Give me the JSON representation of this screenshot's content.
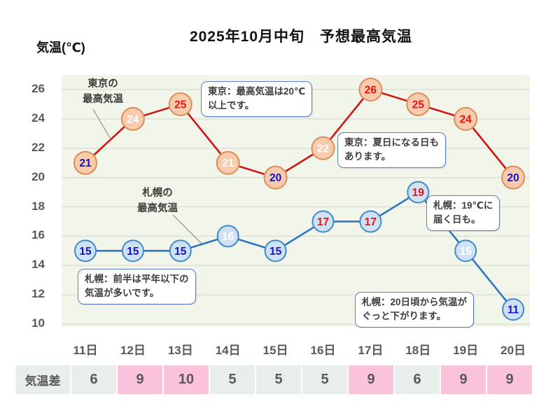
{
  "title": "2025年10月中旬　予想最高気温",
  "y_axis_title": "気温(℃)",
  "chart_data": {
    "type": "line",
    "categories": [
      "11日",
      "12日",
      "13日",
      "14日",
      "15日",
      "16日",
      "17日",
      "18日",
      "19日",
      "20日"
    ],
    "ylim": [
      10,
      26
    ],
    "y_ticks": [
      26,
      24,
      22,
      20,
      18,
      16,
      14,
      12,
      10
    ],
    "grid": true,
    "legend_position": "inline-labels",
    "series": [
      {
        "name": "東京の最高気温",
        "values": [
          21,
          24,
          25,
          21,
          20,
          22,
          26,
          25,
          24,
          20
        ],
        "line_color": "#cf1616",
        "marker_fill": "#f8cbad",
        "marker_stroke": "#dd8d58",
        "value_label_colors": [
          "#1414cc",
          "#ffffff",
          "#e8120e",
          "#ffffff",
          "#1414cc",
          "#ffffff",
          "#e8120e",
          "#e8120e",
          "#e8120e",
          "#1414cc"
        ]
      },
      {
        "name": "札幌の最高気温",
        "values": [
          15,
          15,
          15,
          16,
          15,
          17,
          17,
          19,
          15,
          11
        ],
        "line_color": "#2e77c0",
        "marker_fill": "#cfe2f5",
        "marker_stroke": "#4189cc",
        "value_label_colors": [
          "#1414cc",
          "#1414cc",
          "#1414cc",
          "#ffffff",
          "#1414cc",
          "#e8120e",
          "#e8120e",
          "#e8120e",
          "#ffffff",
          "#1414cc"
        ]
      }
    ]
  },
  "series_labels": {
    "tokyo": "東京の\n最高気温",
    "sapporo": "札幌の\n最高気温"
  },
  "annotations": [
    {
      "id": "tokyo-note-1",
      "text": "東京：最高気温は20℃\n以上です。"
    },
    {
      "id": "tokyo-note-2",
      "text": "東京：夏日になる日も\nあります。"
    },
    {
      "id": "sapporo-note-1",
      "text": "札幌：前半は平年以下の\n気温が多いです。"
    },
    {
      "id": "sapporo-note-2",
      "text": "札幌：19℃に\n届く日も。"
    },
    {
      "id": "sapporo-note-3",
      "text": "札幌：20日頃から気温が\nぐっと下がります。"
    }
  ],
  "diff_table": {
    "row_header": "気温差",
    "values": [
      "6",
      "9",
      "10",
      "5",
      "5",
      "5",
      "9",
      "6",
      "9",
      "9"
    ],
    "highlighted": [
      false,
      true,
      true,
      false,
      false,
      false,
      true,
      false,
      true,
      true
    ]
  },
  "colors": {
    "plot_background": "#f1f5ea",
    "gridline": "#d9dcd3",
    "tick_text": "#595959",
    "annotation_border": "#5b7fc0",
    "highlight_cell": "#fac3da",
    "normal_cell": "#e8efeb",
    "leader_line": "#999999"
  }
}
